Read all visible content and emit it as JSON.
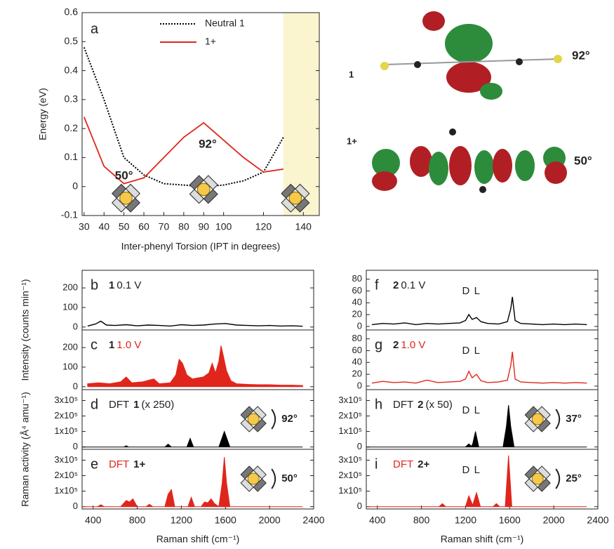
{
  "chart_data": [
    {
      "type": "line",
      "panel": "a",
      "xlabel": "Inter-phenyl Torsion (IPT in degrees)",
      "ylabel": "Energy (eV)",
      "x": [
        30,
        40,
        50,
        60,
        70,
        80,
        90,
        100,
        110,
        120,
        130
      ],
      "series": [
        {
          "name": "Neutral 1",
          "color": "#000000",
          "style": "dotted",
          "values": [
            0.48,
            0.3,
            0.1,
            0.04,
            0.01,
            0.005,
            0.0,
            0.005,
            0.02,
            0.05,
            0.17
          ]
        },
        {
          "name": "1+",
          "color": "#e0261c",
          "style": "solid",
          "values": [
            0.24,
            0.07,
            0.01,
            0.03,
            0.1,
            0.17,
            0.22,
            0.16,
            0.1,
            0.05,
            0.06
          ]
        }
      ],
      "annotations": [
        "50°",
        "92°"
      ],
      "shaded_from": 130,
      "shade_color": "#faf4cf",
      "xlim": [
        29,
        148
      ],
      "xticks": [
        30,
        40,
        50,
        60,
        70,
        80,
        90,
        100,
        120,
        140
      ],
      "ylim": [
        -0.1,
        0.6
      ],
      "yticks": [
        -0.1,
        0,
        0.1,
        0.2,
        0.3,
        0.4,
        0.5,
        0.6
      ]
    },
    {
      "type": "line",
      "panel": "b",
      "compound": "1",
      "condition": "0.1 V",
      "color": "#000000",
      "ylabel": "Intensity (counts min⁻¹)",
      "x": [
        350,
        420,
        470,
        520,
        600,
        700,
        800,
        900,
        1000,
        1100,
        1200,
        1300,
        1400,
        1500,
        1600,
        1700,
        1800,
        1900,
        2000,
        2100,
        2200,
        2300
      ],
      "values": [
        5,
        15,
        30,
        10,
        8,
        12,
        6,
        10,
        8,
        5,
        12,
        8,
        10,
        15,
        18,
        10,
        8,
        6,
        8,
        5,
        6,
        4
      ],
      "xlim": [
        300,
        2400
      ],
      "ylim": [
        -15,
        290
      ],
      "yticks": [
        0,
        100,
        200
      ]
    },
    {
      "type": "area",
      "panel": "c",
      "compound": "1",
      "condition": "1.0 V",
      "color": "#e0261c",
      "x": [
        350,
        450,
        550,
        650,
        700,
        750,
        850,
        950,
        1000,
        1100,
        1150,
        1180,
        1210,
        1250,
        1300,
        1400,
        1450,
        1480,
        1510,
        1540,
        1560,
        1580,
        1610,
        1650,
        1700,
        1800,
        1900,
        2000,
        2100,
        2200,
        2300
      ],
      "values": [
        15,
        20,
        15,
        25,
        50,
        20,
        25,
        40,
        15,
        20,
        60,
        140,
        120,
        60,
        40,
        50,
        70,
        120,
        70,
        130,
        210,
        160,
        80,
        30,
        15,
        12,
        10,
        10,
        8,
        8,
        6
      ],
      "xlim": [
        300,
        2400
      ],
      "ylim": [
        -15,
        290
      ],
      "yticks": [
        0,
        100,
        200
      ]
    },
    {
      "type": "area",
      "panel": "d",
      "prefix": "DFT",
      "compound": "1",
      "condition": "(x 250)",
      "angle": "92°",
      "color": "#000000",
      "ylabel": "Raman activity (Å⁴ amu⁻¹)",
      "x": [
        300,
        680,
        700,
        720,
        1050,
        1080,
        1110,
        1250,
        1280,
        1310,
        1540,
        1570,
        1590,
        1610,
        1640,
        2300
      ],
      "values": [
        0,
        0,
        8000,
        0,
        0,
        18000,
        0,
        0,
        55000,
        0,
        0,
        60000,
        100000,
        60000,
        0,
        0
      ],
      "xlim": [
        300,
        2400
      ],
      "ylim": [
        -15000,
        370000
      ],
      "yticks": [
        0,
        {
          "value": 100000,
          "label": "1x10⁵"
        },
        {
          "value": 200000,
          "label": "2x10⁵"
        },
        {
          "value": 300000,
          "label": "3x10⁵"
        }
      ]
    },
    {
      "type": "area",
      "panel": "e",
      "prefix": "DFT",
      "compound": "1+",
      "angle": "50°",
      "color": "#e0261c",
      "xlabel": "Raman shift (cm⁻¹)",
      "x": [
        300,
        440,
        470,
        500,
        650,
        700,
        730,
        760,
        800,
        880,
        910,
        940,
        1050,
        1080,
        1110,
        1140,
        1260,
        1290,
        1320,
        1380,
        1410,
        1440,
        1470,
        1500,
        1540,
        1570,
        1590,
        1610,
        1640,
        2300
      ],
      "values": [
        0,
        0,
        12000,
        0,
        0,
        40000,
        30000,
        50000,
        0,
        0,
        15000,
        0,
        0,
        80000,
        110000,
        0,
        0,
        60000,
        0,
        0,
        30000,
        25000,
        50000,
        20000,
        0,
        150000,
        320000,
        150000,
        0,
        0
      ],
      "xlim": [
        300,
        2400
      ],
      "xticks": [
        400,
        800,
        1200,
        1600,
        2000,
        2400
      ],
      "ylim": [
        -15000,
        370000
      ],
      "yticks": [
        0,
        {
          "value": 100000,
          "label": "1x10⁵"
        },
        {
          "value": 200000,
          "label": "2x10⁵"
        },
        {
          "value": 300000,
          "label": "3x10⁵"
        }
      ]
    },
    {
      "type": "line",
      "panel": "f",
      "compound": "2",
      "condition": "0.1 V",
      "color": "#000000",
      "peak_labels": [
        "D",
        "L"
      ],
      "x": [
        350,
        450,
        550,
        650,
        750,
        850,
        950,
        1050,
        1150,
        1200,
        1230,
        1260,
        1300,
        1340,
        1400,
        1500,
        1580,
        1610,
        1625,
        1650,
        1700,
        1800,
        1900,
        2000,
        2100,
        2200,
        2300
      ],
      "values": [
        3,
        5,
        4,
        6,
        3,
        5,
        4,
        5,
        6,
        10,
        20,
        12,
        15,
        8,
        5,
        4,
        8,
        30,
        50,
        10,
        5,
        4,
        3,
        4,
        3,
        4,
        3
      ],
      "xlim": [
        300,
        2400
      ],
      "ylim": [
        -6,
        95
      ],
      "yticks": [
        0,
        20,
        40,
        60,
        80
      ]
    },
    {
      "type": "line",
      "panel": "g",
      "compound": "2",
      "condition": "1.0 V",
      "color": "#e0261c",
      "peak_labels": [
        "D",
        "L"
      ],
      "x": [
        350,
        450,
        550,
        650,
        750,
        850,
        950,
        1050,
        1150,
        1200,
        1230,
        1260,
        1300,
        1340,
        1400,
        1500,
        1580,
        1610,
        1625,
        1650,
        1700,
        1800,
        1900,
        2000,
        2100,
        2200,
        2300
      ],
      "values": [
        5,
        8,
        6,
        7,
        5,
        10,
        6,
        7,
        8,
        12,
        25,
        14,
        20,
        9,
        6,
        7,
        10,
        35,
        58,
        12,
        7,
        6,
        5,
        6,
        5,
        6,
        5
      ],
      "xlim": [
        300,
        2400
      ],
      "ylim": [
        -6,
        95
      ],
      "yticks": [
        0,
        20,
        40,
        60,
        80
      ]
    },
    {
      "type": "area",
      "panel": "h",
      "prefix": "DFT",
      "compound": "2",
      "condition": "(x 50)",
      "angle": "37°",
      "color": "#000000",
      "peak_labels": [
        "D",
        "L"
      ],
      "x": [
        300,
        1200,
        1230,
        1255,
        1265,
        1290,
        1320,
        1540,
        1570,
        1590,
        1610,
        1640,
        2300
      ],
      "values": [
        0,
        0,
        20000,
        5000,
        20000,
        100000,
        0,
        0,
        130000,
        270000,
        130000,
        0,
        0
      ],
      "xlim": [
        300,
        2400
      ],
      "ylim": [
        -15000,
        370000
      ],
      "yticks": [
        0,
        {
          "value": 100000,
          "label": "1x10⁵"
        },
        {
          "value": 200000,
          "label": "2x10⁵"
        },
        {
          "value": 300000,
          "label": "3x10⁵"
        }
      ]
    },
    {
      "type": "area",
      "panel": "i",
      "prefix": "DFT",
      "compound": "2+",
      "angle": "25°",
      "color": "#e0261c",
      "peak_labels": [
        "D",
        "L"
      ],
      "xlabel": "Raman shift (cm⁻¹)",
      "x": [
        300,
        960,
        990,
        1020,
        1200,
        1230,
        1265,
        1300,
        1335,
        1450,
        1480,
        1510,
        1560,
        1590,
        1620,
        2300
      ],
      "values": [
        0,
        0,
        20000,
        0,
        0,
        70000,
        10000,
        90000,
        0,
        0,
        20000,
        0,
        0,
        330000,
        0,
        0
      ],
      "xlim": [
        300,
        2400
      ],
      "xticks": [
        400,
        800,
        1200,
        1600,
        2000,
        2400
      ],
      "ylim": [
        -15000,
        370000
      ],
      "yticks": [
        0,
        {
          "value": 100000,
          "label": "1x10⁵"
        },
        {
          "value": 200000,
          "label": "2x10⁵"
        },
        {
          "value": 300000,
          "label": "3x10⁵"
        }
      ]
    }
  ],
  "orbitals": [
    {
      "label": "1",
      "angle": "92°"
    },
    {
      "label": "1+",
      "angle": "50°"
    }
  ]
}
